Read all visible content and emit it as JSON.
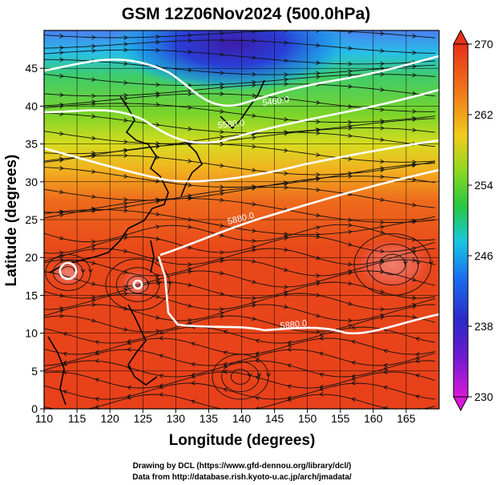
{
  "title": "GSM 12Z06Nov2024 (500.0hPa)",
  "axes": {
    "x_label": "Longitude (degrees)",
    "y_label": "Latitude  (degrees)",
    "x_ticks": [
      "110",
      "115",
      "120",
      "125",
      "130",
      "135",
      "140",
      "145",
      "150",
      "155",
      "160",
      "165"
    ],
    "y_ticks": [
      "0",
      "5",
      "10",
      "15",
      "20",
      "25",
      "30",
      "35",
      "40",
      "45"
    ],
    "x_range": [
      110,
      170
    ],
    "y_range": [
      0,
      50
    ]
  },
  "colorbar": {
    "labels": [
      "230",
      "238",
      "246",
      "254",
      "262",
      "270"
    ],
    "range": [
      230,
      270
    ],
    "colors": [
      "#d81ad8",
      "#3b1fbf",
      "#1a57f0",
      "#18c8e0",
      "#2ec832",
      "#b8e020",
      "#f5c21a",
      "#f06a1a",
      "#e8301a"
    ]
  },
  "contours": {
    "labels": [
      "5460.0",
      "5580.0",
      "5880.0",
      "5880.0"
    ],
    "color": "#ffffff"
  },
  "credits": {
    "line1": "Drawing by DCL (https://www.gfd-dennou.org/library/dcl/)",
    "line2": "Data from http://database.rish.kyoto-u.ac.jp/arch/jmadata/"
  }
}
